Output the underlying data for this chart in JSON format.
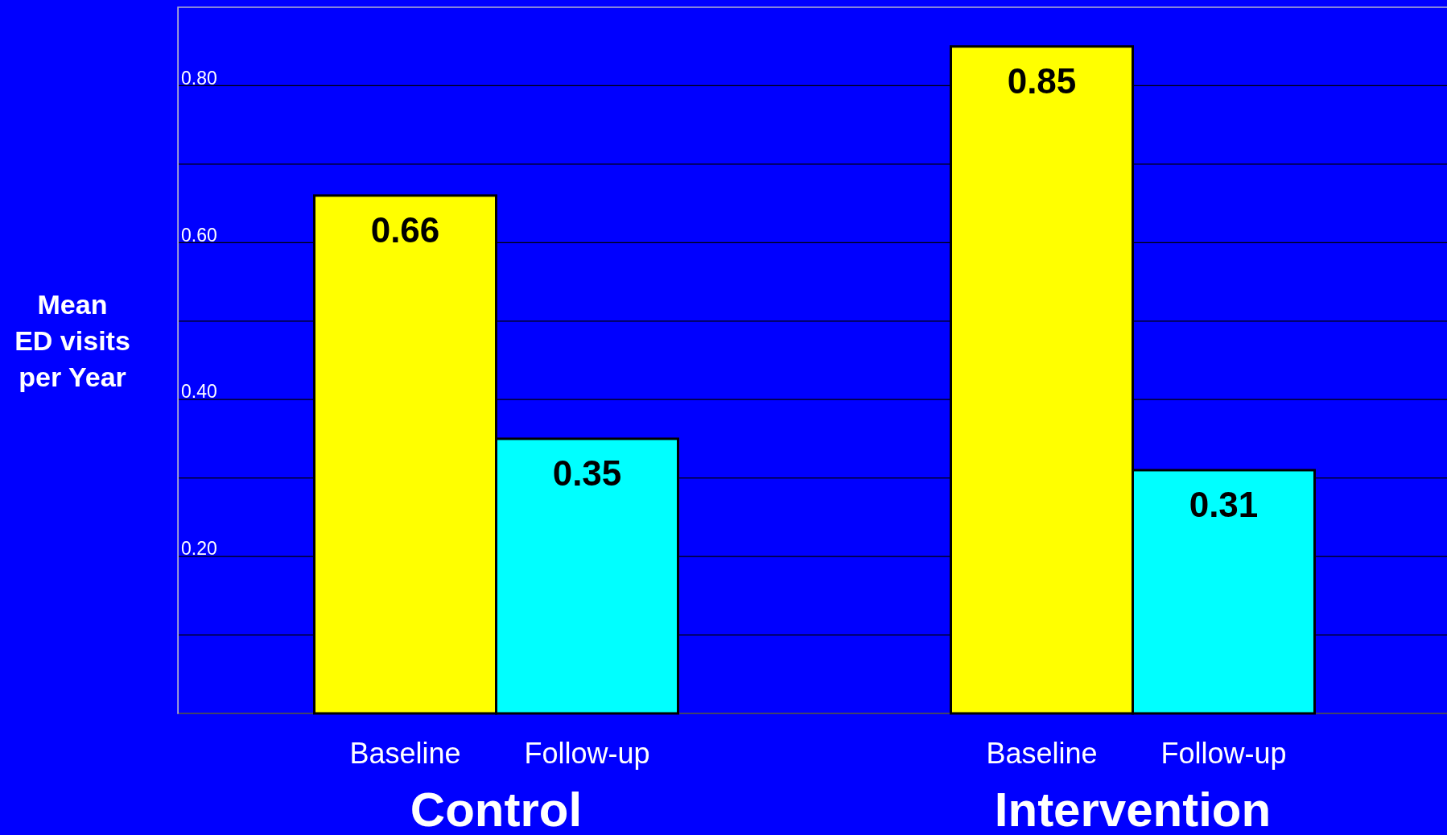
{
  "chart_data": {
    "type": "bar",
    "ylabel": "Mean ED visits per Year",
    "categories": [
      "Control",
      "Intervention"
    ],
    "series": [
      {
        "name": "Baseline",
        "color": "#ffff00",
        "values": [
          0.66,
          0.85
        ]
      },
      {
        "name": "Follow-up",
        "color": "#00ffff",
        "values": [
          0.35,
          0.31
        ]
      }
    ],
    "ylim": [
      0,
      0.9
    ],
    "yticks": [
      {
        "value": 0,
        "label": null
      },
      {
        "value": 0.1,
        "label": null
      },
      {
        "value": 0.2,
        "label": "0.20"
      },
      {
        "value": 0.3,
        "label": null
      },
      {
        "value": 0.4,
        "label": "0.40"
      },
      {
        "value": 0.5,
        "label": null
      },
      {
        "value": 0.6,
        "label": "0.60"
      },
      {
        "value": 0.7,
        "label": null
      },
      {
        "value": 0.8,
        "label": "0.80"
      }
    ],
    "grid": "y",
    "data_labels": true
  }
}
